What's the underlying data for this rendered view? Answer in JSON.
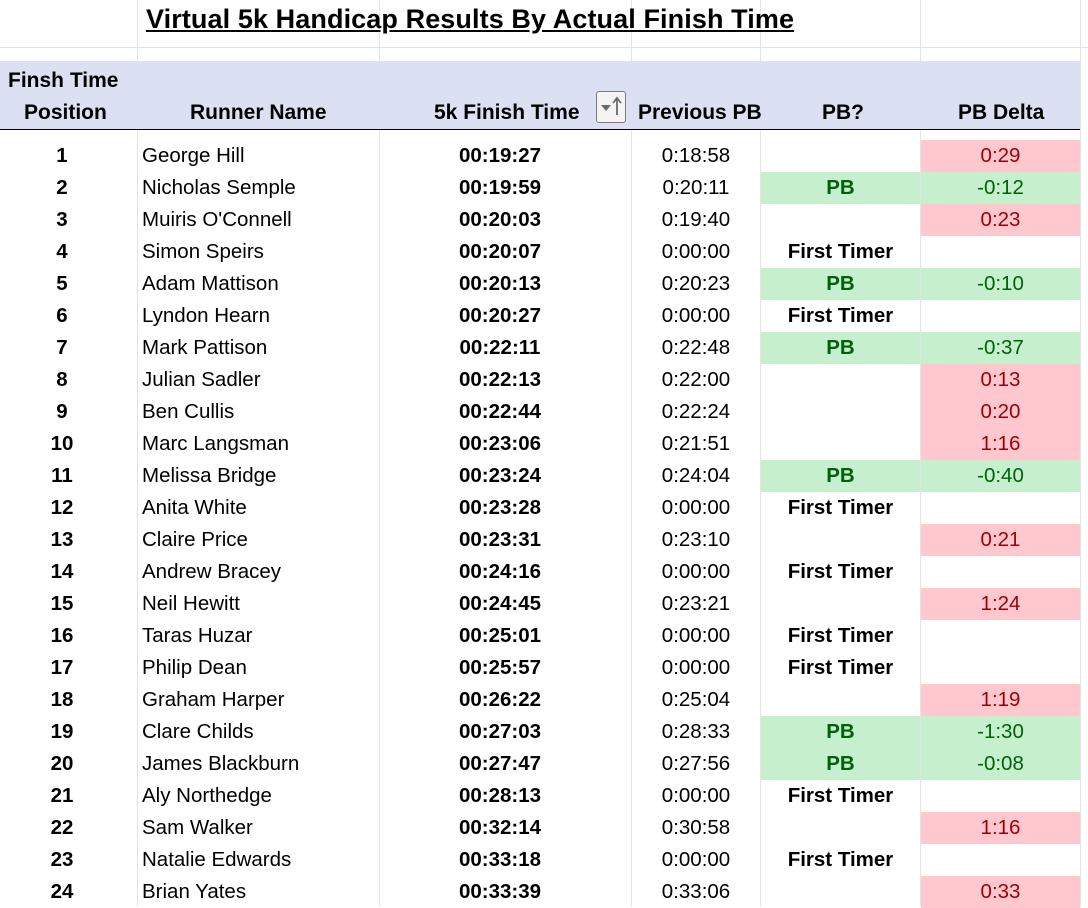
{
  "title": "Virtual 5k Handicap Results By Actual Finish Time",
  "header": {
    "position_line1": "Finsh Time",
    "position_line2": "Position",
    "runner_name": "Runner Name",
    "finish_time": "5k Finish Time",
    "previous_pb": "Previous PB",
    "pb_flag": "PB?",
    "pb_delta": "PB Delta"
  },
  "colors": {
    "header_bg": "#dbe1f2",
    "pb_fill": "#c6efce",
    "pb_text": "#00610a",
    "slower_fill": "#ffc7ce",
    "slower_text": "#9c0006"
  },
  "rows": [
    {
      "pos": "1",
      "name": "George Hill",
      "time": "00:19:27",
      "prev": "0:18:58",
      "pb": "",
      "delta": "0:29"
    },
    {
      "pos": "2",
      "name": "Nicholas Semple",
      "time": "00:19:59",
      "prev": "0:20:11",
      "pb": "PB",
      "delta": "-0:12"
    },
    {
      "pos": "3",
      "name": "Muiris O'Connell",
      "time": "00:20:03",
      "prev": "0:19:40",
      "pb": "",
      "delta": "0:23"
    },
    {
      "pos": "4",
      "name": "Simon Speirs",
      "time": "00:20:07",
      "prev": "0:00:00",
      "pb": "First Timer",
      "delta": ""
    },
    {
      "pos": "5",
      "name": "Adam Mattison",
      "time": "00:20:13",
      "prev": "0:20:23",
      "pb": "PB",
      "delta": "-0:10"
    },
    {
      "pos": "6",
      "name": "Lyndon Hearn",
      "time": "00:20:27",
      "prev": "0:00:00",
      "pb": "First Timer",
      "delta": ""
    },
    {
      "pos": "7",
      "name": "Mark Pattison",
      "time": "00:22:11",
      "prev": "0:22:48",
      "pb": "PB",
      "delta": "-0:37"
    },
    {
      "pos": "8",
      "name": "Julian Sadler",
      "time": "00:22:13",
      "prev": "0:22:00",
      "pb": "",
      "delta": "0:13"
    },
    {
      "pos": "9",
      "name": "Ben Cullis",
      "time": "00:22:44",
      "prev": "0:22:24",
      "pb": "",
      "delta": "0:20"
    },
    {
      "pos": "10",
      "name": "Marc Langsman",
      "time": "00:23:06",
      "prev": "0:21:51",
      "pb": "",
      "delta": "1:16"
    },
    {
      "pos": "11",
      "name": "Melissa Bridge",
      "time": "00:23:24",
      "prev": "0:24:04",
      "pb": "PB",
      "delta": "-0:40"
    },
    {
      "pos": "12",
      "name": "Anita White",
      "time": "00:23:28",
      "prev": "0:00:00",
      "pb": "First Timer",
      "delta": ""
    },
    {
      "pos": "13",
      "name": "Claire Price",
      "time": "00:23:31",
      "prev": "0:23:10",
      "pb": "",
      "delta": "0:21"
    },
    {
      "pos": "14",
      "name": "Andrew Bracey",
      "time": "00:24:16",
      "prev": "0:00:00",
      "pb": "First Timer",
      "delta": ""
    },
    {
      "pos": "15",
      "name": "Neil Hewitt",
      "time": "00:24:45",
      "prev": "0:23:21",
      "pb": "",
      "delta": "1:24"
    },
    {
      "pos": "16",
      "name": "Taras Huzar",
      "time": "00:25:01",
      "prev": "0:00:00",
      "pb": "First Timer",
      "delta": ""
    },
    {
      "pos": "17",
      "name": "Philip Dean",
      "time": "00:25:57",
      "prev": "0:00:00",
      "pb": "First Timer",
      "delta": ""
    },
    {
      "pos": "18",
      "name": "Graham Harper",
      "time": "00:26:22",
      "prev": "0:25:04",
      "pb": "",
      "delta": "1:19"
    },
    {
      "pos": "19",
      "name": "Clare Childs",
      "time": "00:27:03",
      "prev": "0:28:33",
      "pb": "PB",
      "delta": "-1:30"
    },
    {
      "pos": "20",
      "name": "James Blackburn",
      "time": "00:27:47",
      "prev": "0:27:56",
      "pb": "PB",
      "delta": "-0:08"
    },
    {
      "pos": "21",
      "name": "Aly Northedge",
      "time": "00:28:13",
      "prev": "0:00:00",
      "pb": "First Timer",
      "delta": ""
    },
    {
      "pos": "22",
      "name": "Sam Walker",
      "time": "00:32:14",
      "prev": "0:30:58",
      "pb": "",
      "delta": "1:16"
    },
    {
      "pos": "23",
      "name": "Natalie Edwards",
      "time": "00:33:18",
      "prev": "0:00:00",
      "pb": "First Timer",
      "delta": ""
    },
    {
      "pos": "24",
      "name": "Brian Yates",
      "time": "00:33:39",
      "prev": "0:33:06",
      "pb": "",
      "delta": "0:33"
    }
  ]
}
